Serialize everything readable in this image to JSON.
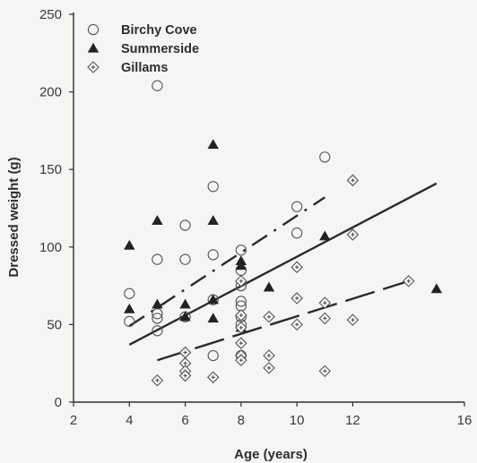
{
  "chart_data": {
    "type": "scatter",
    "xlabel": "Age (years)",
    "ylabel": "Dressed weight (g)",
    "xlim": [
      2,
      16
    ],
    "ylim": [
      0,
      250
    ],
    "xticks": [
      2,
      4,
      6,
      8,
      10,
      12,
      16
    ],
    "xtick_labels": [
      "2",
      "4",
      "6",
      "8",
      "10",
      "12",
      "16"
    ],
    "yticks": [
      0,
      50,
      100,
      150,
      200,
      250
    ],
    "yticks_labels": [
      "0",
      "50",
      "100",
      "150",
      "200",
      "250"
    ],
    "legend_position": "top-left",
    "grid": false,
    "series": [
      {
        "name": "Birchy Cove",
        "marker": "open-circle",
        "points": [
          [
            4,
            70
          ],
          [
            4,
            52
          ],
          [
            5,
            204
          ],
          [
            5,
            92
          ],
          [
            5,
            57
          ],
          [
            5,
            54
          ],
          [
            5,
            46
          ],
          [
            6,
            114
          ],
          [
            6,
            92
          ],
          [
            6,
            55
          ],
          [
            7,
            139
          ],
          [
            7,
            95
          ],
          [
            7,
            66
          ],
          [
            7,
            30
          ],
          [
            8,
            98
          ],
          [
            8,
            85
          ],
          [
            8,
            75
          ],
          [
            8,
            65
          ],
          [
            8,
            62
          ],
          [
            8,
            55
          ],
          [
            8,
            50
          ],
          [
            8,
            30
          ],
          [
            10,
            126
          ],
          [
            10,
            109
          ],
          [
            11,
            158
          ]
        ],
        "trend": {
          "x": [
            4,
            11
          ],
          "y": [
            49,
            132
          ],
          "style": "dash-dot"
        }
      },
      {
        "name": "Summerside",
        "marker": "filled-triangle",
        "points": [
          [
            4,
            101
          ],
          [
            4,
            60
          ],
          [
            5,
            117
          ],
          [
            5,
            63
          ],
          [
            6,
            63
          ],
          [
            6,
            55
          ],
          [
            7,
            166
          ],
          [
            7,
            117
          ],
          [
            7,
            66
          ],
          [
            7,
            54
          ],
          [
            8,
            91
          ],
          [
            8,
            88
          ],
          [
            8,
            48
          ],
          [
            9,
            74
          ],
          [
            11,
            107
          ],
          [
            15,
            73
          ]
        ],
        "trend": {
          "x": [
            4,
            15
          ],
          "y": [
            37,
            141
          ],
          "style": "solid"
        }
      },
      {
        "name": "Gillams",
        "marker": "diamond-plus",
        "points": [
          [
            5,
            14
          ],
          [
            6,
            32
          ],
          [
            6,
            25
          ],
          [
            6,
            20
          ],
          [
            6,
            17
          ],
          [
            7,
            16
          ],
          [
            8,
            78
          ],
          [
            8,
            56
          ],
          [
            8,
            48
          ],
          [
            8,
            38
          ],
          [
            8,
            30
          ],
          [
            8,
            27
          ],
          [
            9,
            55
          ],
          [
            9,
            30
          ],
          [
            9,
            22
          ],
          [
            10,
            87
          ],
          [
            10,
            67
          ],
          [
            10,
            50
          ],
          [
            11,
            64
          ],
          [
            11,
            54
          ],
          [
            11,
            20
          ],
          [
            12,
            143
          ],
          [
            12,
            108
          ],
          [
            12,
            53
          ],
          [
            14,
            78
          ]
        ],
        "trend": {
          "x": [
            5,
            14
          ],
          "y": [
            27,
            78
          ],
          "style": "long-dash"
        }
      }
    ]
  }
}
